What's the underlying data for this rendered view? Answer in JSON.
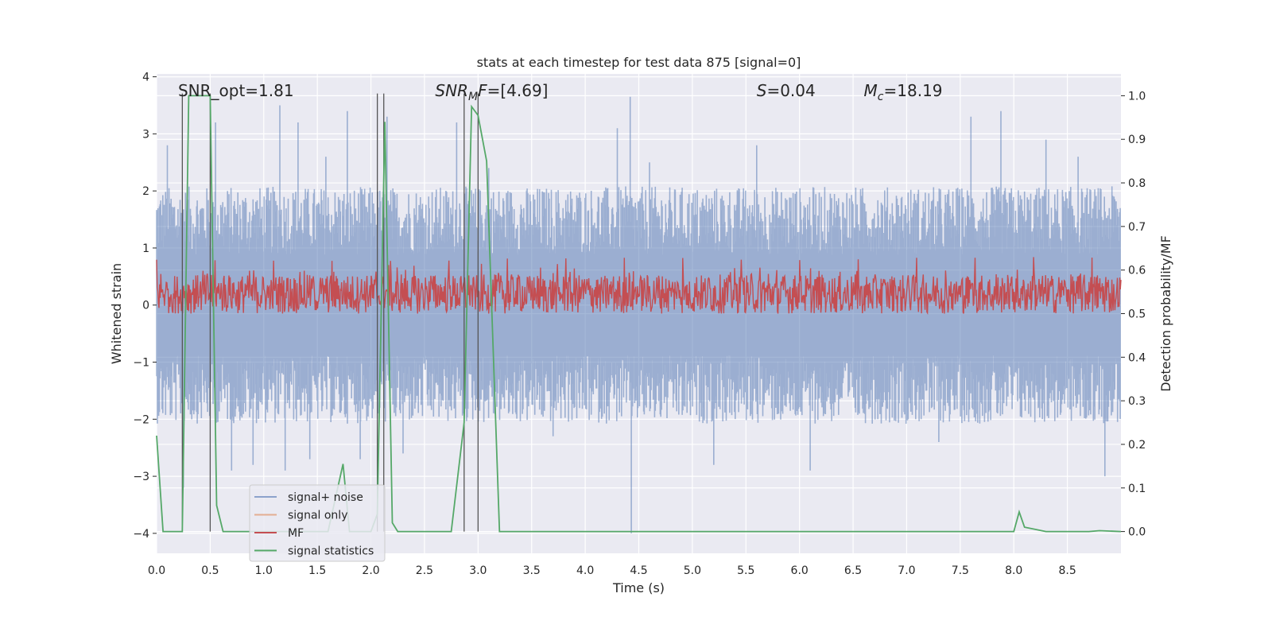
{
  "chart_data": {
    "type": "line",
    "title": "stats at each timestep for test data 875 [signal=0]",
    "xlabel": "Time (s)",
    "ylabel": "Whitened strain",
    "y2label": "Detection probability/MF",
    "xlim": [
      0.0,
      9.0
    ],
    "ylim": [
      -4.35,
      4.05
    ],
    "y2lim": [
      -0.05,
      1.05
    ],
    "xticks": [
      "0.0",
      "0.5",
      "1.0",
      "1.5",
      "2.0",
      "2.5",
      "3.0",
      "3.5",
      "4.0",
      "4.5",
      "5.0",
      "5.5",
      "6.0",
      "6.5",
      "7.0",
      "7.5",
      "8.0",
      "8.5"
    ],
    "yticks": [
      "4",
      "3",
      "2",
      "1",
      "0",
      "−1",
      "−2",
      "−3",
      "−4"
    ],
    "y2ticks": [
      "1.0",
      "0.9",
      "0.8",
      "0.7",
      "0.6",
      "0.5",
      "0.4",
      "0.3",
      "0.2",
      "0.1",
      "0.0"
    ],
    "grid": true,
    "legend_position": "lower-left",
    "colors": {
      "signal_noise": "#4c72b0",
      "signal_only": "#dd8452",
      "mf": "#c44e52",
      "signal_statistics": "#55a868",
      "vlines": "#555555",
      "background": "#eaeaf2"
    },
    "annotations": [
      {
        "text": "SNR_opt=1.81",
        "x": 0.2
      },
      {
        "text": "SNR",
        "sub": "M",
        "suffix": "F=[4.69]",
        "italic": true,
        "x": 2.6
      },
      {
        "text": "S",
        "suffix": "=0.04",
        "italic": true,
        "x": 5.6
      },
      {
        "text": "M",
        "sub": "c",
        "suffix": "=18.19",
        "italic": true,
        "x": 6.6
      }
    ],
    "series": [
      {
        "name": "signal+ noise",
        "axis": "left",
        "description_level": "noise band",
        "envelope_typical": [
          -1.6,
          1.6
        ],
        "spikes": [
          [
            0.1,
            2.8
          ],
          [
            0.25,
            -3.2
          ],
          [
            0.55,
            3.2
          ],
          [
            0.7,
            -2.9
          ],
          [
            0.9,
            -2.8
          ],
          [
            1.15,
            3.5
          ],
          [
            1.2,
            -2.9
          ],
          [
            1.32,
            3.2
          ],
          [
            1.43,
            -2.7
          ],
          [
            1.58,
            2.6
          ],
          [
            1.78,
            3.4
          ],
          [
            1.9,
            -2.7
          ],
          [
            2.15,
            3.3
          ],
          [
            2.3,
            -2.6
          ],
          [
            2.8,
            3.2
          ],
          [
            3.1,
            2.4
          ],
          [
            3.7,
            -2.3
          ],
          [
            4.3,
            3.1
          ],
          [
            4.42,
            3.65
          ],
          [
            4.43,
            -4.0
          ],
          [
            4.6,
            2.5
          ],
          [
            5.2,
            -2.8
          ],
          [
            5.6,
            2.8
          ],
          [
            6.1,
            -2.9
          ],
          [
            7.3,
            -2.4
          ],
          [
            7.6,
            3.3
          ],
          [
            7.88,
            3.4
          ],
          [
            8.3,
            2.9
          ],
          [
            8.6,
            2.6
          ],
          [
            8.85,
            -3.0
          ]
        ]
      },
      {
        "name": "signal only",
        "axis": "left",
        "values": []
      },
      {
        "name": "MF",
        "axis": "right",
        "range": [
          0.5,
          0.62
        ],
        "peak": 0.63
      },
      {
        "name": "signal statistics",
        "axis": "right",
        "points": [
          [
            0.0,
            0.22
          ],
          [
            0.06,
            0.0
          ],
          [
            0.24,
            0.0
          ],
          [
            0.3,
            1.0
          ],
          [
            0.5,
            1.0
          ],
          [
            0.56,
            0.06
          ],
          [
            0.62,
            0.0
          ],
          [
            1.6,
            0.0
          ],
          [
            1.74,
            0.155
          ],
          [
            1.8,
            0.0
          ],
          [
            2.0,
            0.0
          ],
          [
            2.06,
            0.04
          ],
          [
            2.13,
            0.94
          ],
          [
            2.2,
            0.02
          ],
          [
            2.25,
            0.0
          ],
          [
            2.75,
            0.0
          ],
          [
            2.87,
            0.25
          ],
          [
            2.94,
            0.975
          ],
          [
            3.0,
            0.955
          ],
          [
            3.08,
            0.85
          ],
          [
            3.2,
            0.0
          ],
          [
            3.3,
            0.0
          ],
          [
            8.0,
            0.0
          ],
          [
            8.05,
            0.045
          ],
          [
            8.1,
            0.01
          ],
          [
            8.3,
            0.0
          ],
          [
            8.7,
            0.0
          ],
          [
            8.8,
            0.002
          ],
          [
            9.0,
            0.0
          ]
        ]
      }
    ],
    "vertical_markers": [
      0.24,
      0.5,
      2.06,
      2.12,
      2.87,
      3.0
    ]
  }
}
